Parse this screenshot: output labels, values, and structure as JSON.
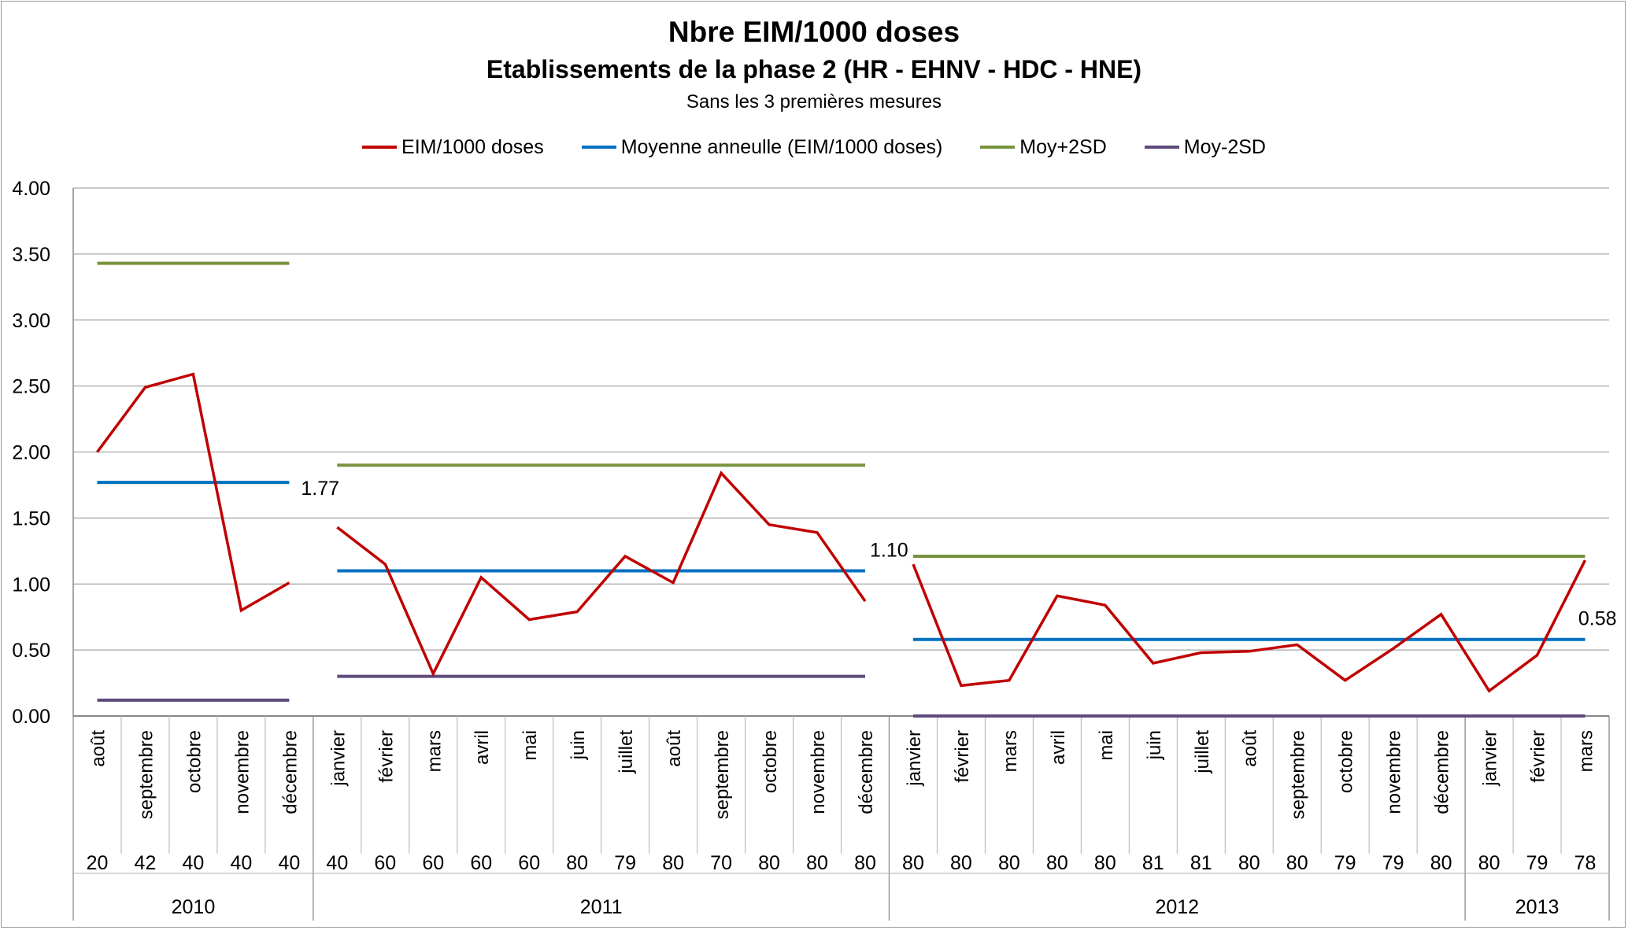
{
  "chart_data": {
    "type": "line",
    "title": "Nbre EIM/1000 doses",
    "subtitle": "Etablissements de la phase 2 (HR - EHNV - HDC - HNE)",
    "subtitle2": "Sans les 3 premières mesures",
    "ylim": [
      0,
      4
    ],
    "y_ticks": [
      "0.00",
      "0.50",
      "1.00",
      "1.50",
      "2.00",
      "2.50",
      "3.00",
      "3.50",
      "4.00"
    ],
    "y_tick_values": [
      0,
      0.5,
      1,
      1.5,
      2,
      2.5,
      3,
      3.5,
      4
    ],
    "grid": true,
    "legend_position": "top",
    "categories": [
      "août",
      "septembre",
      "octobre",
      "novembre",
      "décembre",
      "janvier",
      "février",
      "mars",
      "avril",
      "mai",
      "juin",
      "juillet",
      "août",
      "septembre",
      "octobre",
      "novembre",
      "décembre",
      "janvier",
      "février",
      "mars",
      "avril",
      "mai",
      "juin",
      "juillet",
      "août",
      "septembre",
      "octobre",
      "novembre",
      "décembre",
      "janvier",
      "février",
      "mars"
    ],
    "counts": [
      "20",
      "42",
      "40",
      "40",
      "40",
      "40",
      "60",
      "60",
      "60",
      "60",
      "80",
      "79",
      "80",
      "70",
      "80",
      "80",
      "80",
      "80",
      "80",
      "80",
      "80",
      "80",
      "81",
      "81",
      "80",
      "80",
      "79",
      "79",
      "80",
      "80",
      "79",
      "78"
    ],
    "years": [
      {
        "label": "2010",
        "start": 0,
        "end": 4
      },
      {
        "label": "2011",
        "start": 5,
        "end": 16
      },
      {
        "label": "2012",
        "start": 17,
        "end": 28
      },
      {
        "label": "2013",
        "start": 29,
        "end": 31
      }
    ],
    "series": [
      {
        "name": "EIM/1000 doses",
        "color": "#C00000",
        "segments": [
          {
            "start": 0,
            "values": [
              2.0,
              2.49,
              2.59,
              0.8,
              1.01
            ]
          },
          {
            "start": 5,
            "values": [
              1.43,
              1.15,
              0.32,
              1.05,
              0.73,
              0.79,
              1.21,
              1.01,
              1.84,
              1.45,
              1.39,
              0.87
            ]
          },
          {
            "start": 17,
            "values": [
              1.15,
              0.23,
              0.27,
              0.91,
              0.84,
              0.4,
              0.48,
              0.49,
              0.54,
              0.27,
              0.51,
              0.77,
              0.19,
              0.46,
              1.18
            ]
          }
        ]
      },
      {
        "name": "Moyenne anneulle (EIM/1000 doses)",
        "color": "#0070C0",
        "segments": [
          {
            "start": 0,
            "end": 4,
            "value": 1.77,
            "label": "1.77"
          },
          {
            "start": 5,
            "end": 16,
            "value": 1.1,
            "label": "1.10"
          },
          {
            "start": 17,
            "end": 31,
            "value": 0.58,
            "label": "0.58"
          }
        ]
      },
      {
        "name": "Moy+2SD",
        "color": "#77933C",
        "segments": [
          {
            "start": 0,
            "end": 4,
            "value": 3.43
          },
          {
            "start": 5,
            "end": 16,
            "value": 1.9
          },
          {
            "start": 17,
            "end": 31,
            "value": 1.21
          }
        ]
      },
      {
        "name": "Moy-2SD",
        "color": "#604A7B",
        "segments": [
          {
            "start": 0,
            "end": 4,
            "value": 0.12
          },
          {
            "start": 5,
            "end": 16,
            "value": 0.3
          },
          {
            "start": 17,
            "end": 31,
            "value": 0.0
          }
        ]
      }
    ]
  }
}
